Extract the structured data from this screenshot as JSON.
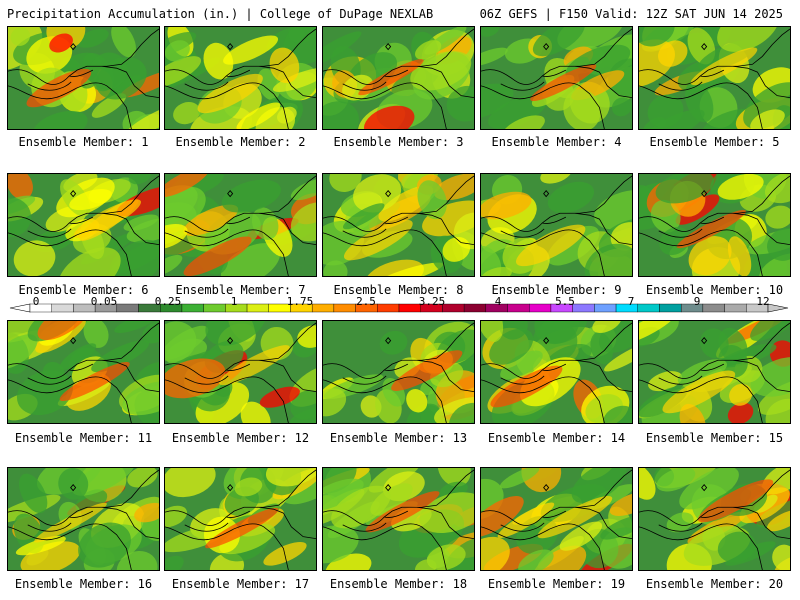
{
  "header": {
    "left": "Precipitation Accumulation (in.) | College of DuPage NEXLAB",
    "right": "06Z GEFS | F150 Valid: 12Z SAT JUN 14 2025"
  },
  "member_label_prefix": "Ensemble Member: ",
  "members": [
    1,
    2,
    3,
    4,
    5,
    6,
    7,
    8,
    9,
    10,
    11,
    12,
    13,
    14,
    15,
    16,
    17,
    18,
    19,
    20
  ],
  "colorbar": {
    "labels": [
      "0",
      "0.05",
      "0.25",
      "1",
      "1.75",
      "2.5",
      "3.25",
      "4",
      "5.5",
      "7",
      "9",
      "12"
    ],
    "colors": [
      "#ffffff",
      "#d9d9d9",
      "#bdbdbd",
      "#9a9a9a",
      "#7a7a7a",
      "#3a7a3a",
      "#2e8b2e",
      "#3cb034",
      "#6ecb2e",
      "#a6dc1c",
      "#dcef14",
      "#ffff00",
      "#ffd400",
      "#ffae00",
      "#ff8c00",
      "#ff6400",
      "#ff3c00",
      "#ff0000",
      "#d4001e",
      "#b0002c",
      "#8b0030",
      "#a00060",
      "#c8008c",
      "#e600c8",
      "#c848ff",
      "#8c78ff",
      "#6ea0ff",
      "#00dcff",
      "#00c8c8",
      "#00a0a0",
      "#6e8c8c",
      "#8c8c8c",
      "#aaaaaa",
      "#c8c8c8"
    ]
  },
  "icons": {
    "marker": "diamond-icon"
  }
}
